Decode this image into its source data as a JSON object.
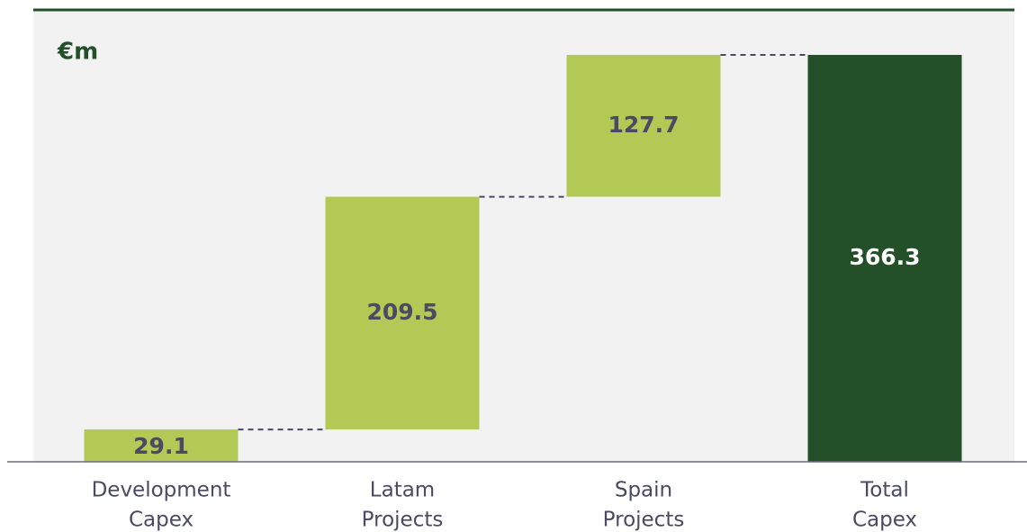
{
  "chart_data": {
    "type": "waterfall",
    "unit_label": "€m",
    "categories": [
      [
        "Development",
        "Capex"
      ],
      [
        "Latam",
        "Projects"
      ],
      [
        "Spain",
        "Projects"
      ],
      [
        "Total",
        "Capex"
      ]
    ],
    "values": [
      29.1,
      209.5,
      127.7,
      366.3
    ],
    "is_total": [
      false,
      false,
      false,
      true
    ],
    "colors": [
      "#b3c956",
      "#b3c956",
      "#b3c956",
      "#235029"
    ],
    "ylim": [
      0,
      400
    ]
  }
}
